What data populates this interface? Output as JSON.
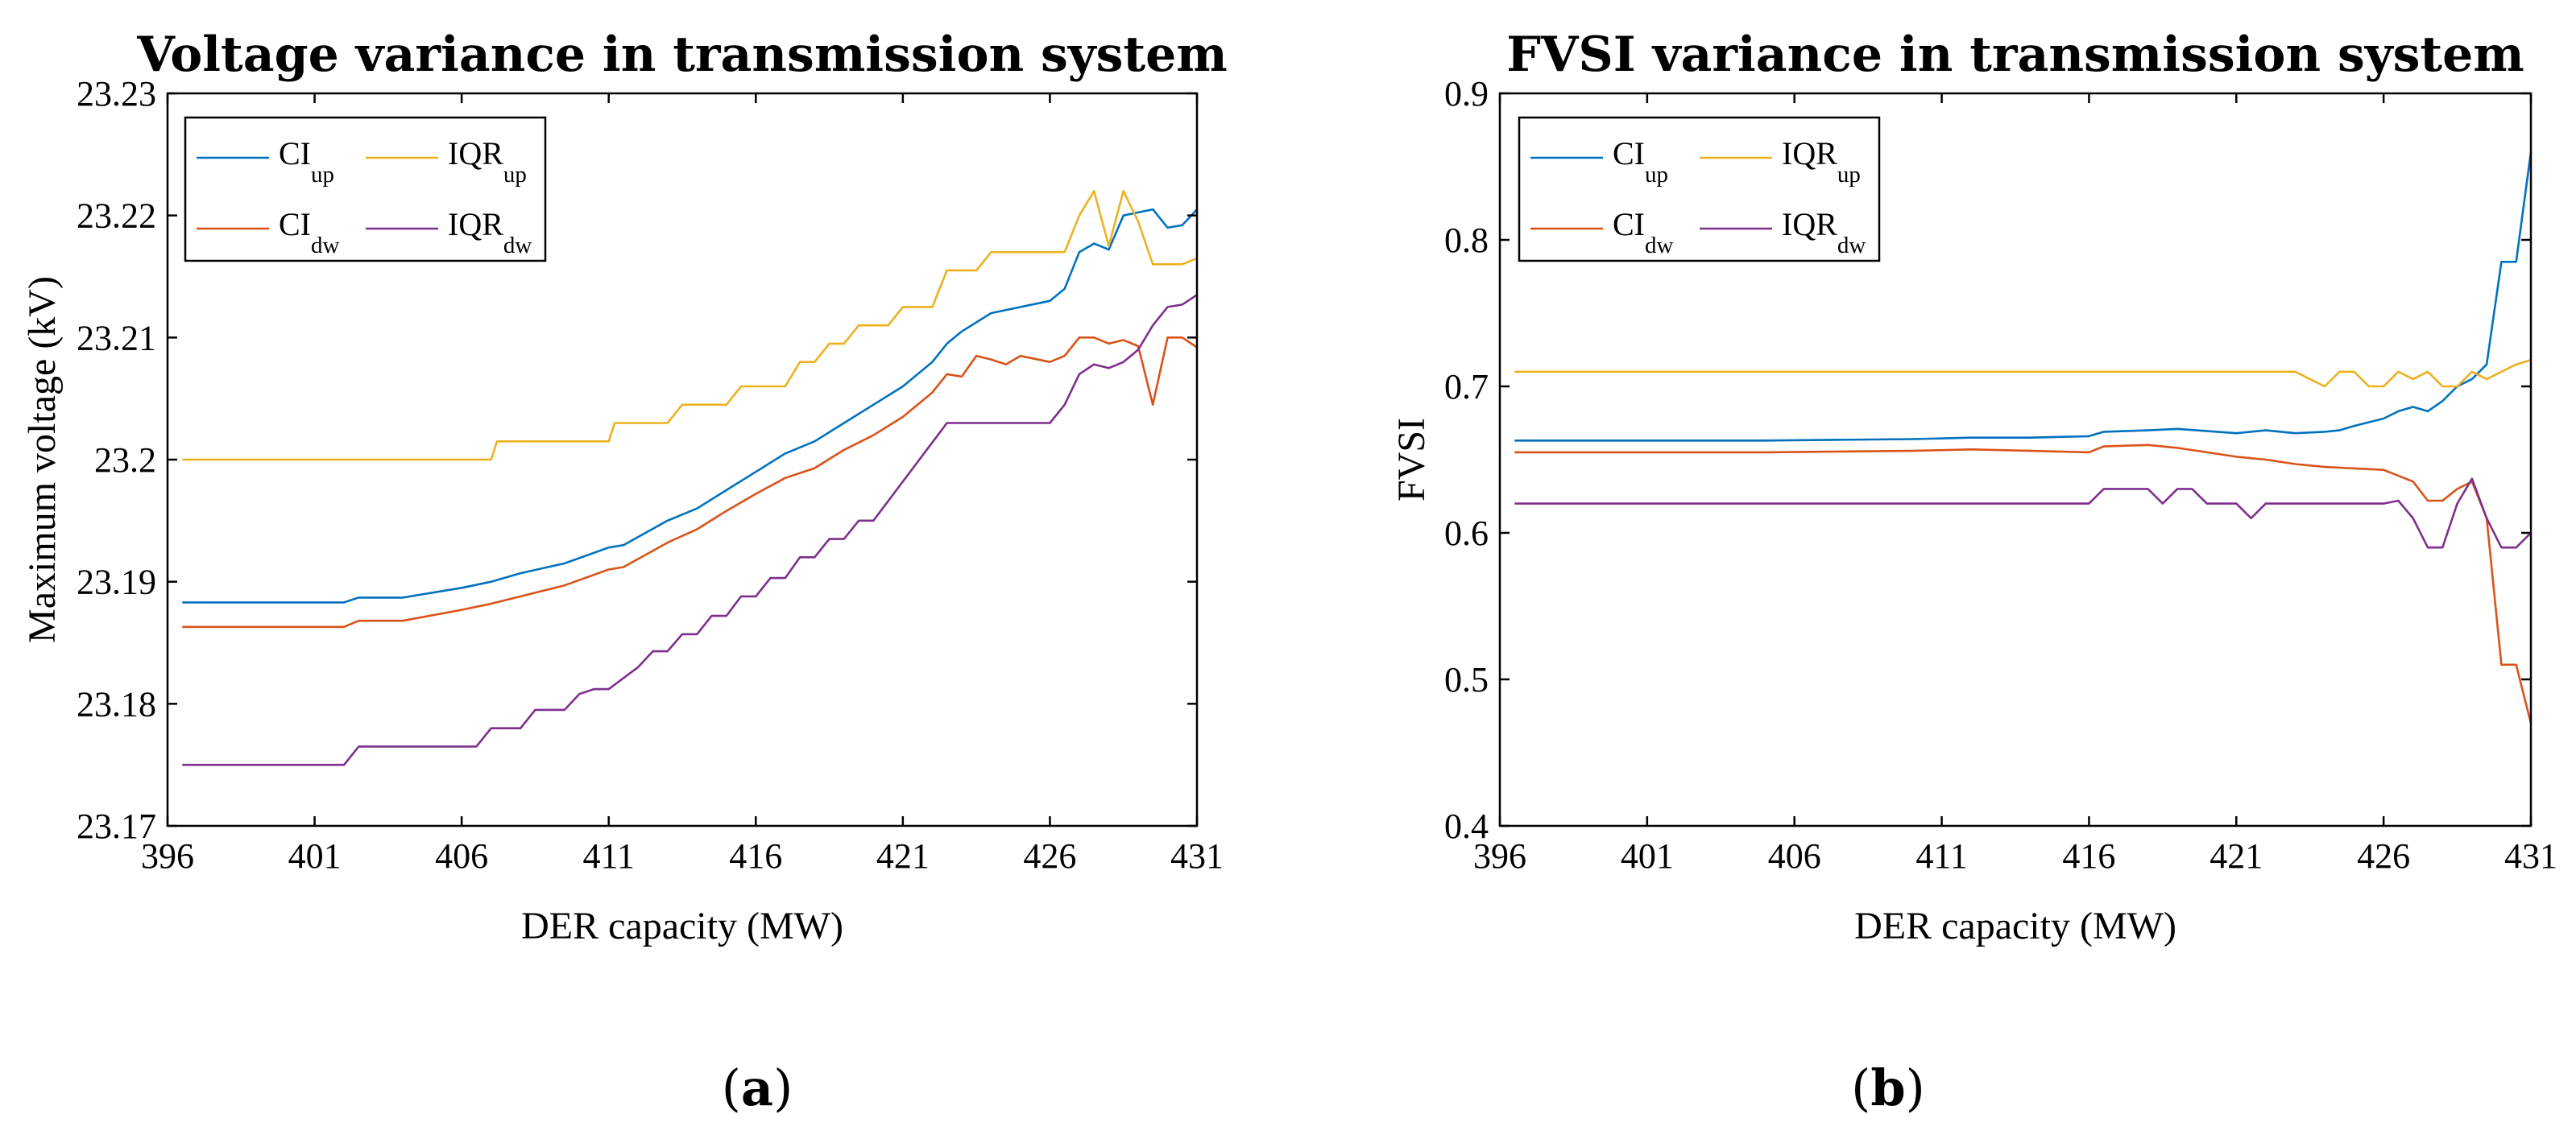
{
  "chart_data": [
    {
      "type": "line",
      "panel_label": "(a)",
      "panel_letter": "a",
      "title": "Voltage variance in transmission system",
      "xlabel": "DER capacity (MW)",
      "ylabel": "Maximum voltage (kV)",
      "xlim": [
        396,
        431
      ],
      "ylim": [
        23.17,
        23.23
      ],
      "xticks": [
        "396",
        "401",
        "406",
        "411",
        "416",
        "421",
        "426",
        "431"
      ],
      "yticks": [
        "23.17",
        "23.18",
        "23.19",
        "23.2",
        "23.21",
        "23.22",
        "23.23"
      ],
      "grid": false,
      "legend_position": "top-left",
      "series": [
        {
          "name": "CI",
          "sub": "up",
          "color": "#0072BD",
          "points": [
            [
              396.5,
              23.1883
            ],
            [
              402,
              23.1883
            ],
            [
              402.5,
              23.1887
            ],
            [
              404,
              23.1887
            ],
            [
              406,
              23.1895
            ],
            [
              407,
              23.19
            ],
            [
              408,
              23.1907
            ],
            [
              409.5,
              23.1915
            ],
            [
              411,
              23.1928
            ],
            [
              411.5,
              23.193
            ],
            [
              413,
              23.195
            ],
            [
              414,
              23.196
            ],
            [
              415,
              23.1975
            ],
            [
              416,
              23.199
            ],
            [
              417,
              23.2005
            ],
            [
              418,
              23.2015
            ],
            [
              419,
              23.203
            ],
            [
              420,
              23.2045
            ],
            [
              421,
              23.206
            ],
            [
              422,
              23.208
            ],
            [
              422.5,
              23.2095
            ],
            [
              423,
              23.2105
            ],
            [
              424,
              23.212
            ],
            [
              425,
              23.2125
            ],
            [
              426,
              23.213
            ],
            [
              426.5,
              23.214
            ],
            [
              427,
              23.217
            ],
            [
              427.5,
              23.2177
            ],
            [
              428,
              23.2172
            ],
            [
              428.5,
              23.22
            ],
            [
              429.5,
              23.2205
            ],
            [
              430,
              23.219
            ],
            [
              430.5,
              23.2192
            ],
            [
              431,
              23.2205
            ]
          ]
        },
        {
          "name": "IQR",
          "sub": "up",
          "color": "#EDB120",
          "points": [
            [
              396.5,
              23.2
            ],
            [
              407,
              23.2
            ],
            [
              407.2,
              23.2015
            ],
            [
              410,
              23.2015
            ],
            [
              411,
              23.2015
            ],
            [
              411.2,
              23.203
            ],
            [
              413,
              23.203
            ],
            [
              413.5,
              23.2045
            ],
            [
              415,
              23.2045
            ],
            [
              415.5,
              23.206
            ],
            [
              417,
              23.206
            ],
            [
              417.5,
              23.208
            ],
            [
              418,
              23.208
            ],
            [
              418.5,
              23.2095
            ],
            [
              419,
              23.2095
            ],
            [
              419.5,
              23.211
            ],
            [
              420.5,
              23.211
            ],
            [
              421,
              23.2125
            ],
            [
              422,
              23.2125
            ],
            [
              422.5,
              23.2155
            ],
            [
              423.5,
              23.2155
            ],
            [
              424,
              23.217
            ],
            [
              426.5,
              23.217
            ],
            [
              427,
              23.22
            ],
            [
              427.5,
              23.222
            ],
            [
              428,
              23.2175
            ],
            [
              428.5,
              23.222
            ],
            [
              429,
              23.2195
            ],
            [
              429.5,
              23.216
            ],
            [
              430.5,
              23.216
            ],
            [
              431,
              23.2165
            ]
          ]
        },
        {
          "name": "CI",
          "sub": "dw",
          "color": "#D95319",
          "points": [
            [
              396.5,
              23.1863
            ],
            [
              402,
              23.1863
            ],
            [
              402.5,
              23.1868
            ],
            [
              404,
              23.1868
            ],
            [
              406,
              23.1877
            ],
            [
              407,
              23.1882
            ],
            [
              408,
              23.1888
            ],
            [
              409.5,
              23.1897
            ],
            [
              411,
              23.191
            ],
            [
              411.5,
              23.1912
            ],
            [
              413,
              23.1932
            ],
            [
              414,
              23.1943
            ],
            [
              415,
              23.1958
            ],
            [
              416,
              23.1972
            ],
            [
              417,
              23.1985
            ],
            [
              418,
              23.1993
            ],
            [
              419,
              23.2008
            ],
            [
              420,
              23.202
            ],
            [
              421,
              23.2035
            ],
            [
              422,
              23.2055
            ],
            [
              422.5,
              23.207
            ],
            [
              423,
              23.2068
            ],
            [
              423.5,
              23.2085
            ],
            [
              424,
              23.2082
            ],
            [
              424.5,
              23.2078
            ],
            [
              425,
              23.2085
            ],
            [
              426,
              23.208
            ],
            [
              426.5,
              23.2085
            ],
            [
              427,
              23.21
            ],
            [
              427.5,
              23.21
            ],
            [
              428,
              23.2095
            ],
            [
              428.5,
              23.2098
            ],
            [
              429,
              23.2093
            ],
            [
              429.5,
              23.2045
            ],
            [
              430,
              23.21
            ],
            [
              430.5,
              23.21
            ],
            [
              431,
              23.2092
            ]
          ]
        },
        {
          "name": "IQR",
          "sub": "dw",
          "color": "#7E2F8E",
          "points": [
            [
              396.5,
              23.175
            ],
            [
              402,
              23.175
            ],
            [
              402.5,
              23.1765
            ],
            [
              406.5,
              23.1765
            ],
            [
              407,
              23.178
            ],
            [
              408,
              23.178
            ],
            [
              408.5,
              23.1795
            ],
            [
              409.5,
              23.1795
            ],
            [
              410,
              23.1808
            ],
            [
              410.5,
              23.1812
            ],
            [
              411,
              23.1812
            ],
            [
              412,
              23.183
            ],
            [
              412.5,
              23.1843
            ],
            [
              413,
              23.1843
            ],
            [
              413.5,
              23.1857
            ],
            [
              414,
              23.1857
            ],
            [
              414.5,
              23.1872
            ],
            [
              415,
              23.1872
            ],
            [
              415.5,
              23.1888
            ],
            [
              416,
              23.1888
            ],
            [
              416.5,
              23.1903
            ],
            [
              417,
              23.1903
            ],
            [
              417.5,
              23.192
            ],
            [
              418,
              23.192
            ],
            [
              418.5,
              23.1935
            ],
            [
              419,
              23.1935
            ],
            [
              419.5,
              23.195
            ],
            [
              420,
              23.195
            ],
            [
              422.5,
              23.203
            ],
            [
              426,
              23.203
            ],
            [
              426.5,
              23.2045
            ],
            [
              427,
              23.207
            ],
            [
              427.5,
              23.2078
            ],
            [
              428,
              23.2075
            ],
            [
              428.5,
              23.208
            ],
            [
              429,
              23.209
            ],
            [
              429.5,
              23.211
            ],
            [
              430,
              23.2125
            ],
            [
              430.5,
              23.2127
            ],
            [
              431,
              23.2135
            ]
          ]
        }
      ]
    },
    {
      "type": "line",
      "panel_label": "(b)",
      "panel_letter": "b",
      "title": "FVSI variance in transmission system",
      "xlabel": "DER capacity (MW)",
      "ylabel": "FVSI",
      "xlim": [
        396,
        431
      ],
      "ylim": [
        0.4,
        0.9
      ],
      "xticks": [
        "396",
        "401",
        "406",
        "411",
        "416",
        "421",
        "426",
        "431"
      ],
      "yticks": [
        "0.4",
        "0.5",
        "0.6",
        "0.7",
        "0.8",
        "0.9"
      ],
      "grid": false,
      "legend_position": "top-left",
      "series": [
        {
          "name": "CI",
          "sub": "up",
          "color": "#0072BD",
          "points": [
            [
              396.5,
              0.663
            ],
            [
              405,
              0.663
            ],
            [
              410,
              0.664
            ],
            [
              412,
              0.665
            ],
            [
              414,
              0.665
            ],
            [
              416,
              0.666
            ],
            [
              416.5,
              0.669
            ],
            [
              418,
              0.67
            ],
            [
              419,
              0.671
            ],
            [
              421,
              0.668
            ],
            [
              422,
              0.67
            ],
            [
              423,
              0.668
            ],
            [
              424,
              0.669
            ],
            [
              424.5,
              0.67
            ],
            [
              425,
              0.673
            ],
            [
              426,
              0.678
            ],
            [
              426.5,
              0.683
            ],
            [
              427,
              0.686
            ],
            [
              427.5,
              0.683
            ],
            [
              428,
              0.69
            ],
            [
              428.5,
              0.7
            ],
            [
              429,
              0.705
            ],
            [
              429.5,
              0.715
            ],
            [
              430,
              0.785
            ],
            [
              430.5,
              0.785
            ],
            [
              431,
              0.86
            ]
          ]
        },
        {
          "name": "IQR",
          "sub": "up",
          "color": "#EDB120",
          "points": [
            [
              396.5,
              0.71
            ],
            [
              423,
              0.71
            ],
            [
              423.5,
              0.705
            ],
            [
              424,
              0.7
            ],
            [
              424.5,
              0.71
            ],
            [
              425,
              0.71
            ],
            [
              425.5,
              0.7
            ],
            [
              426,
              0.7
            ],
            [
              426.5,
              0.71
            ],
            [
              427,
              0.705
            ],
            [
              427.5,
              0.71
            ],
            [
              428,
              0.7
            ],
            [
              428.5,
              0.7
            ],
            [
              429,
              0.71
            ],
            [
              429.5,
              0.705
            ],
            [
              430,
              0.71
            ],
            [
              430.5,
              0.715
            ],
            [
              431,
              0.718
            ]
          ]
        },
        {
          "name": "CI",
          "sub": "dw",
          "color": "#D95319",
          "points": [
            [
              396.5,
              0.655
            ],
            [
              405,
              0.655
            ],
            [
              410,
              0.656
            ],
            [
              412,
              0.657
            ],
            [
              414,
              0.656
            ],
            [
              416,
              0.655
            ],
            [
              416.5,
              0.659
            ],
            [
              418,
              0.66
            ],
            [
              419,
              0.658
            ],
            [
              421,
              0.652
            ],
            [
              422,
              0.65
            ],
            [
              423,
              0.647
            ],
            [
              424,
              0.645
            ],
            [
              425,
              0.644
            ],
            [
              426,
              0.643
            ],
            [
              427,
              0.635
            ],
            [
              427.5,
              0.622
            ],
            [
              428,
              0.622
            ],
            [
              428.5,
              0.63
            ],
            [
              429,
              0.635
            ],
            [
              429.5,
              0.61
            ],
            [
              430,
              0.51
            ],
            [
              430.5,
              0.51
            ],
            [
              431,
              0.47
            ]
          ]
        },
        {
          "name": "IQR",
          "sub": "dw",
          "color": "#7E2F8E",
          "points": [
            [
              396.5,
              0.62
            ],
            [
              416,
              0.62
            ],
            [
              416.5,
              0.63
            ],
            [
              418,
              0.63
            ],
            [
              418.5,
              0.62
            ],
            [
              419,
              0.63
            ],
            [
              419.5,
              0.63
            ],
            [
              420,
              0.62
            ],
            [
              421,
              0.62
            ],
            [
              421.5,
              0.61
            ],
            [
              422,
              0.62
            ],
            [
              424,
              0.62
            ],
            [
              425,
              0.62
            ],
            [
              426,
              0.62
            ],
            [
              426.5,
              0.622
            ],
            [
              427,
              0.61
            ],
            [
              427.5,
              0.59
            ],
            [
              428,
              0.59
            ],
            [
              428.5,
              0.62
            ],
            [
              429,
              0.637
            ],
            [
              429.5,
              0.61
            ],
            [
              430,
              0.59
            ],
            [
              430.5,
              0.59
            ],
            [
              431,
              0.6
            ]
          ]
        }
      ]
    }
  ]
}
